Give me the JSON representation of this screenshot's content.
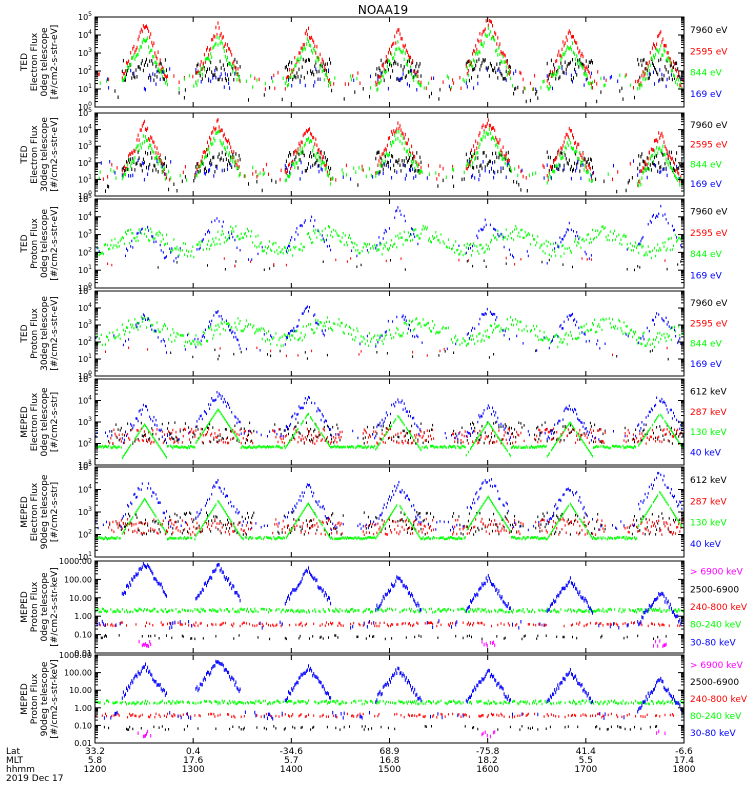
{
  "title": "NOAA19",
  "colors": {
    "black": "#000000",
    "red": "#ff0000",
    "green": "#00ff00",
    "blue": "#0000ff",
    "magenta": "#ff00ff",
    "frame": "#000000"
  },
  "chart_data": [
    {
      "type": "scatter",
      "ylabel_lines": [
        "TED",
        "Electron Flux",
        "0deg telescope",
        "[#/cm2-s-str-eV]"
      ],
      "yscale": "log",
      "ylim": [
        1,
        100000
      ],
      "yticks": [
        "10^0",
        "10^1",
        "10^2",
        "10^3",
        "10^4",
        "10^5"
      ],
      "legend": [
        "7960 eV",
        "2595 eV",
        "844 eV",
        "169 eV"
      ],
      "legend_colors": [
        "black",
        "red",
        "green",
        "blue"
      ],
      "xlim": [
        "12:00",
        "18:00"
      ],
      "bursts_hhmm": [
        "12:30",
        "13:15",
        "14:10",
        "15:05",
        "16:00",
        "16:50",
        "17:45"
      ],
      "peak_log": [
        4.3,
        4.2,
        4.0,
        3.9,
        4.6,
        4.0,
        3.8
      ]
    },
    {
      "type": "scatter",
      "ylabel_lines": [
        "TED",
        "Electron Flux",
        "30deg telescope",
        "[#/cm2-s-str-eV]"
      ],
      "yscale": "log",
      "ylim": [
        1,
        100000
      ],
      "yticks": [
        "10^0",
        "10^1",
        "10^2",
        "10^3",
        "10^4",
        "10^5"
      ],
      "legend": [
        "7960 eV",
        "2595 eV",
        "844 eV",
        "169 eV"
      ],
      "legend_colors": [
        "black",
        "red",
        "green",
        "blue"
      ],
      "xlim": [
        "12:00",
        "18:00"
      ],
      "bursts_hhmm": [
        "12:30",
        "13:15",
        "14:10",
        "15:05",
        "16:00",
        "16:50",
        "17:45"
      ],
      "peak_log": [
        4.0,
        4.2,
        3.9,
        4.2,
        4.4,
        3.8,
        3.5
      ]
    },
    {
      "type": "scatter",
      "ylabel_lines": [
        "TED",
        "Proton Flux",
        "0deg telescope",
        "[#/cm2-s-str-eV]"
      ],
      "yscale": "log",
      "ylim": [
        1,
        100000
      ],
      "yticks": [
        "10^0",
        "10^1",
        "10^2",
        "10^3",
        "10^4",
        "10^5"
      ],
      "legend": [
        "7960 eV",
        "2595 eV",
        "844 eV",
        "169 eV"
      ],
      "legend_colors": [
        "black",
        "red",
        "green",
        "blue"
      ],
      "xlim": [
        "12:00",
        "18:00"
      ],
      "bursts_hhmm": [
        "12:30",
        "13:15",
        "14:10",
        "15:05",
        "16:00",
        "16:50",
        "17:45"
      ],
      "peak_log": [
        3.3,
        3.8,
        3.9,
        4.1,
        3.7,
        3.3,
        4.2
      ]
    },
    {
      "type": "scatter",
      "ylabel_lines": [
        "TED",
        "Proton Flux",
        "30deg telescope",
        "[#/cm2-s-str-eV]"
      ],
      "yscale": "log",
      "ylim": [
        1,
        100000
      ],
      "yticks": [
        "10^0",
        "10^1",
        "10^2",
        "10^3",
        "10^4",
        "10^5"
      ],
      "legend": [
        "7960 eV",
        "2595 eV",
        "844 eV",
        "169 eV"
      ],
      "legend_colors": [
        "black",
        "red",
        "green",
        "blue"
      ],
      "xlim": [
        "12:00",
        "18:00"
      ],
      "bursts_hhmm": [
        "12:30",
        "13:15",
        "14:10",
        "15:05",
        "16:00",
        "16:50",
        "17:45"
      ],
      "peak_log": [
        3.3,
        3.5,
        3.8,
        3.6,
        3.8,
        3.4,
        3.5
      ]
    },
    {
      "type": "scatter",
      "ylabel_lines": [
        "MEPED",
        "Electron Flux",
        "0deg telescope",
        "[#/cm2-s-str]"
      ],
      "yscale": "log",
      "ylim": [
        10,
        100000
      ],
      "yticks": [
        "10^1",
        "10^2",
        "10^3",
        "10^4",
        "10^5"
      ],
      "legend": [
        "612 keV",
        "287 keV",
        "130 keV",
        "40 keV"
      ],
      "legend_colors": [
        "black",
        "red",
        "green",
        "blue"
      ],
      "xlim": [
        "12:00",
        "18:00"
      ],
      "bursts_hhmm": [
        "12:30",
        "13:15",
        "14:10",
        "15:05",
        "16:00",
        "16:50",
        "17:45"
      ],
      "peak_log": [
        3.5,
        4.2,
        4.0,
        3.9,
        3.6,
        3.6,
        4.0
      ]
    },
    {
      "type": "scatter",
      "ylabel_lines": [
        "MEPED",
        "Electron Flux",
        "90deg telescope",
        "[#/cm2-s-str]"
      ],
      "yscale": "log",
      "ylim": [
        10,
        100000
      ],
      "yticks": [
        "10^1",
        "10^2",
        "10^3",
        "10^4",
        "10^5"
      ],
      "legend": [
        "612 keV",
        "287 keV",
        "130 keV",
        "40 keV"
      ],
      "legend_colors": [
        "black",
        "red",
        "green",
        "blue"
      ],
      "xlim": [
        "12:00",
        "18:00"
      ],
      "bursts_hhmm": [
        "12:30",
        "13:15",
        "14:10",
        "15:05",
        "16:00",
        "16:50",
        "17:45"
      ],
      "peak_log": [
        4.2,
        4.1,
        4.0,
        4.0,
        4.3,
        4.0,
        4.5
      ]
    },
    {
      "type": "scatter",
      "ylabel_lines": [
        "MEPED",
        "Proton Flux",
        "0deg telescope",
        "[#/cm2-s-str-keV]"
      ],
      "yscale": "log",
      "ylim": [
        0.01,
        1000
      ],
      "yticks": [
        "0.01",
        "0.10",
        "1.00",
        "10.00",
        "100.00",
        "1000.00"
      ],
      "legend": [
        "> 6900 keV",
        "2500-6900",
        "240-800 keV",
        "80-240 keV",
        "30-80 keV"
      ],
      "legend_colors": [
        "magenta",
        "black",
        "red",
        "green",
        "blue"
      ],
      "xlim": [
        "12:00",
        "18:00"
      ],
      "bursts_hhmm": [
        "12:30",
        "13:15",
        "14:10",
        "15:05",
        "16:00",
        "16:50",
        "17:45"
      ],
      "peak_log": [
        2.8,
        2.6,
        2.4,
        2.0,
        2.0,
        1.9,
        1.2
      ]
    },
    {
      "type": "scatter",
      "ylabel_lines": [
        "MEPED",
        "Proton Flux",
        "90deg telescope",
        "[#/cm2-s-str-keV]"
      ],
      "yscale": "log",
      "ylim": [
        0.01,
        1000
      ],
      "yticks": [
        "0.01",
        "0.10",
        "1.00",
        "10.00",
        "100.00",
        "1000.00"
      ],
      "legend": [
        "> 6900 keV",
        "2500-6900",
        "240-800 keV",
        "80-240 keV",
        "30-80 keV"
      ],
      "legend_colors": [
        "magenta",
        "black",
        "red",
        "green",
        "blue"
      ],
      "xlim": [
        "12:00",
        "18:00"
      ],
      "bursts_hhmm": [
        "12:30",
        "13:15",
        "14:10",
        "15:05",
        "16:00",
        "16:50",
        "17:45"
      ],
      "peak_log": [
        2.3,
        2.6,
        2.2,
        2.1,
        2.0,
        2.0,
        1.5
      ]
    }
  ],
  "xaxis": {
    "row_labels": [
      "Lat",
      "MLT",
      "hhmm",
      "2019 Dec 17"
    ],
    "ticks": [
      {
        "lat": "33.2",
        "mlt": "5.8",
        "hhmm": "1200"
      },
      {
        "lat": "0.4",
        "mlt": "17.6",
        "hhmm": "1300"
      },
      {
        "lat": "-34.6",
        "mlt": "5.7",
        "hhmm": "1400"
      },
      {
        "lat": "68.9",
        "mlt": "16.8",
        "hhmm": "1500"
      },
      {
        "lat": "-75.8",
        "mlt": "18.2",
        "hhmm": "1600"
      },
      {
        "lat": "41.4",
        "mlt": "5.5",
        "hhmm": "1700"
      },
      {
        "lat": "-6.6",
        "mlt": "17.4",
        "hhmm": "1800"
      }
    ]
  }
}
